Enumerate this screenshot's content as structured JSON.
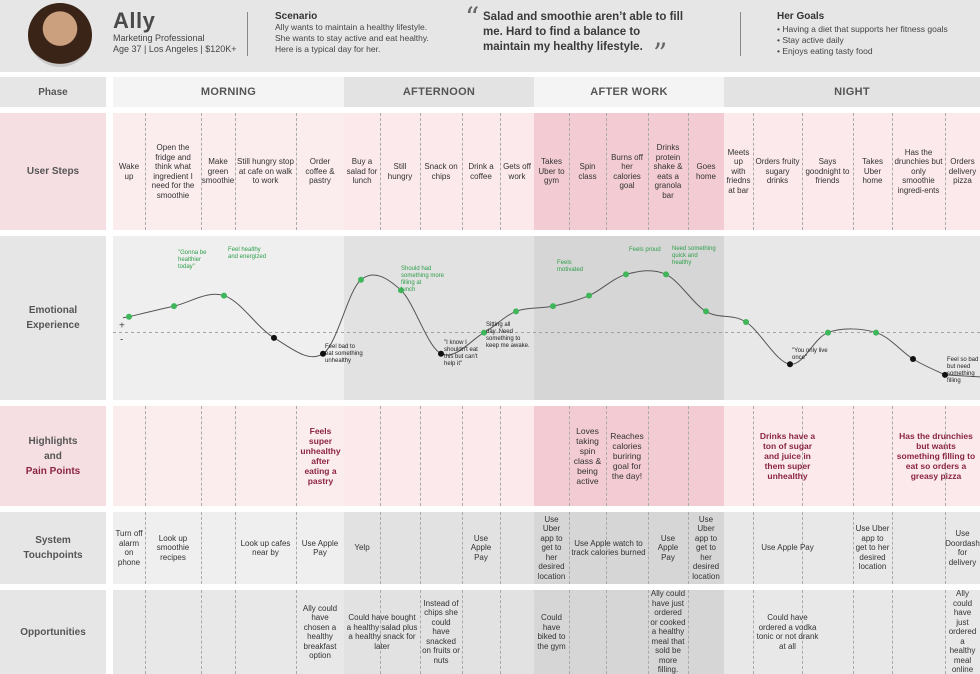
{
  "persona": {
    "name": "Ally",
    "title": "Marketing Professional",
    "details": "Age 37 | Los Angeles | $120K+"
  },
  "scenario": {
    "title": "Scenario",
    "text": "Ally wants to maintain a healthy lifestyle. She wants to stay active and eat healthy. Here is a typical day for her."
  },
  "quote": {
    "open": "“",
    "text": "Salad and smoothie aren’t able to fill me.  Hard to find a balance to maintain my healthy lifestyle.",
    "close": "”"
  },
  "goals": {
    "title": "Her Goals",
    "items": [
      "• Having a diet that supports her fitness goals",
      "• Stay active daily",
      "• Enjoys eating tasty food"
    ]
  },
  "row_labels": {
    "phase": "Phase",
    "steps": "User Steps",
    "emotional": "Emotional Experience",
    "highlights": "Highlights",
    "and": "and",
    "pain": "Pain Points",
    "touchpoints": "System Touchpoints",
    "opportunities": "Opportunities"
  },
  "axis_marks": {
    "plus": "+",
    "minus": "-"
  },
  "phases": [
    "MORNING",
    "AFTERNOON",
    "AFTER WORK",
    "NIGHT"
  ],
  "steps": [
    "Wake up",
    "Open the fridge and think what ingredient I need for the smoothie",
    "Make green smoothie",
    "Still hungry stop at cafe on walk to work",
    "Order coffee & pastry",
    "Buy a salad for lunch",
    "Still hungry",
    "Snack on chips",
    "Drink a coffee",
    "Gets off work",
    "Takes Uber to gym",
    "Spin class",
    "Burns off her calories goal",
    "Drinks protein shake & eats a granola bar",
    "Goes home",
    "Meets up with friedns at bar",
    "Orders fruity sugary drinks",
    "Says goodnight to friends",
    "Takes Uber home",
    "Has the drunchies but only smoothie ingredi-ents",
    "Orders delivery pizza"
  ],
  "emotion_annotations": [
    {
      "text": "\"Gonna be healthier today\"",
      "tone": "positive"
    },
    {
      "text": "Feel healthy and energized",
      "tone": "positive"
    },
    {
      "text": "Feel bad to eat something unhealthy",
      "tone": "negative"
    },
    {
      "text": "Should had something more filling at lunch",
      "tone": "positive"
    },
    {
      "text": "\"I know I shouldn't eat this but can't help it\"",
      "tone": "negative"
    },
    {
      "text": "Sitting all day. Need something to keep me awake.",
      "tone": "negative"
    },
    {
      "text": "Feels motivated",
      "tone": "positive"
    },
    {
      "text": "Feels proud",
      "tone": "positive"
    },
    {
      "text": "Need something quick and healthy",
      "tone": "positive"
    },
    {
      "text": "\"You only live once\"",
      "tone": "negative"
    },
    {
      "text": "Feel so bad but need something filling",
      "tone": "negative"
    }
  ],
  "highlights": [
    {
      "text": "Feels super unhealthy after eating a pastry",
      "type": "pain"
    },
    {
      "text": "Loves taking spin class & being active",
      "type": "highlight"
    },
    {
      "text": "Reaches calories buriring goal for the day!",
      "type": "highlight"
    },
    {
      "text": "Drinks have a ton of sugar and juice in them super unhealthy",
      "type": "pain"
    },
    {
      "text": "Has the drunchies but wants something filling to eat so orders a greasy pizza",
      "type": "pain"
    }
  ],
  "touchpoints": [
    "Turn off alarm on phone",
    "Look up smoothie recipes",
    "Look up cafes near by",
    "Use Apple Pay",
    "Yelp",
    "Use Apple Pay",
    "Use Uber app to get to her desired location",
    "Use Apple watch to track calories burned",
    "Use Apple Pay",
    "Use Uber app to get to her desired location",
    "Use Apple Pay",
    "Use Uber app to get to her desired location",
    "Use Doordash for delivery"
  ],
  "opportunities": [
    "Ally could have chosen a healthy breakfast option",
    "Could have bought a healthy salad plus a healthy snack for later",
    "Instead of chips she could have snacked on fruits or nuts",
    "Could have biked to the gym",
    "Ally could have just ordered or cooked a healthy meal that sold be more filling.",
    "Could have ordered a vodka tonic or not drank at all",
    "Ally could have just ordered a healthy meal online"
  ],
  "chart_data": {
    "type": "line",
    "title": "Emotional Experience",
    "x": [
      "Wake up",
      "Open the fridge",
      "Make green smoothie",
      "Still hungry stop at cafe",
      "Order coffee & pastry",
      "Buy a salad for lunch",
      "Still hungry",
      "Snack on chips",
      "Drink a coffee",
      "Gets off work",
      "Takes Uber to gym",
      "Spin class",
      "Burns off her calories goal",
      "Drinks protein shake",
      "Goes home",
      "Meets up with friends",
      "Orders fruity sugary drinks",
      "Says goodnight to friends",
      "Takes Uber home",
      "Has the drunchies",
      "Orders delivery pizza"
    ],
    "y": [
      3,
      5,
      7,
      -1,
      -4,
      10,
      8,
      -4,
      0,
      4,
      5,
      7,
      11,
      11,
      4,
      2,
      -6,
      0,
      0,
      -5,
      -8
    ],
    "ylim": [
      -12,
      16
    ],
    "baseline": 0,
    "ylabel": "+ / -",
    "xlabel": ""
  }
}
